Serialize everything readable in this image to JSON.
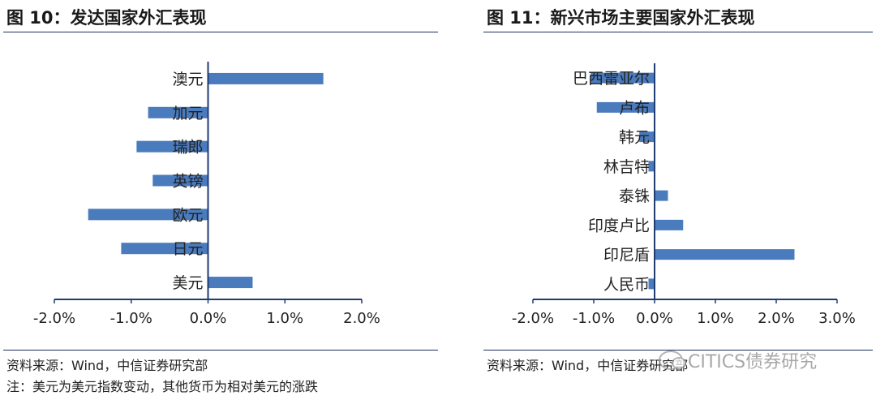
{
  "left": {
    "title": "图 10：发达国家外汇表现",
    "source": "资料来源：Wind，中信证券研究部",
    "note": "注：美元为美元指数变动，其他货币为相对美元的涨跌"
  },
  "right": {
    "title": "图 11：新兴市场主要国家外汇表现",
    "source": "资料来源：Wind，中信证券研究部"
  },
  "watermark": "CITICS债券研究",
  "bar_color": "#4a7bbd",
  "axis_color": "#1f3c73",
  "chart_data": [
    {
      "type": "bar",
      "orientation": "horizontal",
      "categories": [
        "澳元",
        "加元",
        "瑞郎",
        "英镑",
        "欧元",
        "日元",
        "美元"
      ],
      "values": [
        1.5,
        -0.78,
        -0.93,
        -0.72,
        -1.56,
        -1.13,
        0.58
      ],
      "xlim": [
        -2.0,
        2.0
      ],
      "x_ticks": [
        -2.0,
        -1.0,
        0.0,
        1.0,
        2.0
      ],
      "x_tick_labels": [
        "-2.0%",
        "-1.0%",
        "0.0%",
        "1.0%",
        "2.0%"
      ],
      "grid": false
    },
    {
      "type": "bar",
      "orientation": "horizontal",
      "categories": [
        "巴西雷亚尔",
        "卢布",
        "韩元",
        "林吉特",
        "泰铢",
        "印度卢比",
        "印尼盾",
        "人民币"
      ],
      "values": [
        -1.05,
        -0.95,
        -0.25,
        -0.1,
        0.22,
        0.47,
        2.3,
        -0.1
      ],
      "xlim": [
        -2.0,
        3.0
      ],
      "x_ticks": [
        -2.0,
        -1.0,
        0.0,
        1.0,
        2.0,
        3.0
      ],
      "x_tick_labels": [
        "-2.0%",
        "-1.0%",
        "0.0%",
        "1.0%",
        "2.0%",
        "3.0%"
      ],
      "grid": false
    }
  ]
}
